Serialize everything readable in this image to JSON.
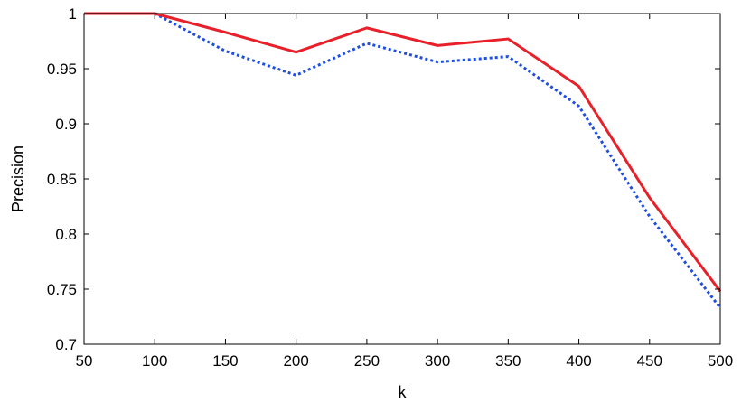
{
  "chart_data": {
    "type": "line",
    "title": "",
    "xlabel": "k",
    "ylabel": "Precision",
    "xlim": [
      50,
      500
    ],
    "ylim": [
      0.7,
      1.0
    ],
    "x_ticks": [
      50,
      100,
      150,
      200,
      250,
      300,
      350,
      400,
      450,
      500
    ],
    "y_ticks": [
      0.7,
      0.75,
      0.8,
      0.85,
      0.9,
      0.95,
      1.0
    ],
    "y_tick_labels": [
      "0.7",
      "0.75",
      "0.8",
      "0.85",
      "0.9",
      "0.95",
      "1"
    ],
    "x": [
      50,
      100,
      150,
      200,
      250,
      300,
      350,
      400,
      450,
      500
    ],
    "grid": false,
    "legend": "none",
    "series": [
      {
        "values": [
          1.0,
          1.0,
          0.983,
          0.965,
          0.987,
          0.971,
          0.977,
          0.934,
          0.833,
          0.748
        ],
        "color": "#e8202a",
        "style": "solid"
      },
      {
        "values": [
          1.0,
          1.0,
          0.966,
          0.944,
          0.973,
          0.956,
          0.961,
          0.916,
          0.816,
          0.733
        ],
        "color": "#1f4fe0",
        "style": "dotted"
      }
    ]
  }
}
